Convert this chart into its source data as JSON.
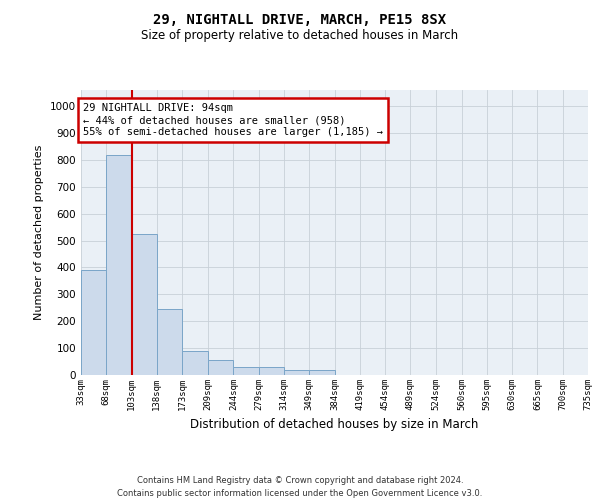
{
  "title": "29, NIGHTALL DRIVE, MARCH, PE15 8SX",
  "subtitle": "Size of property relative to detached houses in March",
  "xlabel": "Distribution of detached houses by size in March",
  "ylabel": "Number of detached properties",
  "bar_edges": [
    33,
    68,
    103,
    138,
    173,
    209,
    244,
    279,
    314,
    349,
    384,
    419,
    454,
    489,
    524,
    560,
    595,
    630,
    665,
    700,
    735
  ],
  "bar_heights": [
    390,
    820,
    525,
    245,
    90,
    55,
    30,
    30,
    20,
    20,
    0,
    0,
    0,
    0,
    0,
    0,
    0,
    0,
    0,
    0
  ],
  "bar_color": "#ccdaeb",
  "bar_edge_color": "#7aa5c8",
  "property_line_x": 103,
  "property_line_color": "#cc0000",
  "annotation_text": "29 NIGHTALL DRIVE: 94sqm\n← 44% of detached houses are smaller (958)\n55% of semi-detached houses are larger (1,185) →",
  "annotation_box_color": "#cc0000",
  "ylim": [
    0,
    1060
  ],
  "yticks": [
    0,
    100,
    200,
    300,
    400,
    500,
    600,
    700,
    800,
    900,
    1000
  ],
  "grid_color": "#c8d0d8",
  "background_color": "#eaf0f6",
  "footer_line1": "Contains HM Land Registry data © Crown copyright and database right 2024.",
  "footer_line2": "Contains public sector information licensed under the Open Government Licence v3.0."
}
